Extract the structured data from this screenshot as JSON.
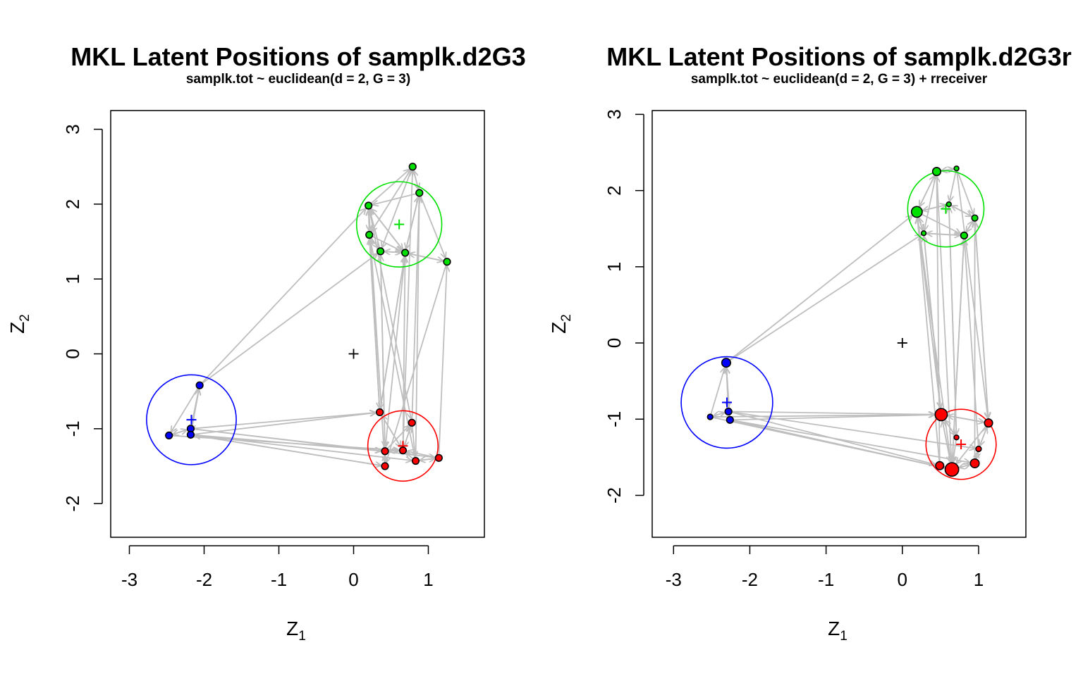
{
  "chart_data": [
    {
      "type": "scatter",
      "title": "MKL Latent Positions of samplk.d2G3",
      "subtitle": "samplk.tot ~ euclidean(d = 2, G = 3)",
      "xlabel": "Z",
      "xlabel_sub": "1",
      "ylabel": "Z",
      "ylabel_sub": "2",
      "xlim": [
        -3.25,
        1.75
      ],
      "ylim": [
        -2.45,
        3.25
      ],
      "xticks": [
        -3,
        -2,
        -1,
        0,
        1
      ],
      "yticks": [
        -2,
        -1,
        0,
        1,
        2,
        3
      ],
      "origin_marker": [
        0,
        0
      ],
      "edge_color": "#bebebe",
      "groups": [
        {
          "color": "#0000ff",
          "center": [
            -2.17,
            -0.88
          ],
          "radius": 0.6
        },
        {
          "color": "#ff0000",
          "center": [
            0.66,
            -1.23
          ],
          "radius": 0.47
        },
        {
          "color": "#00e000",
          "center": [
            0.61,
            1.73
          ],
          "radius": 0.57
        }
      ],
      "nodes": [
        {
          "x": -2.47,
          "y": -1.09,
          "group": 0,
          "size": 1
        },
        {
          "x": -2.18,
          "y": -1.0,
          "group": 0,
          "size": 1
        },
        {
          "x": -2.18,
          "y": -1.08,
          "group": 0,
          "size": 1
        },
        {
          "x": -2.06,
          "y": -0.42,
          "group": 0,
          "size": 1
        },
        {
          "x": 0.35,
          "y": -0.78,
          "group": 1,
          "size": 1
        },
        {
          "x": 0.78,
          "y": -0.92,
          "group": 1,
          "size": 1
        },
        {
          "x": 0.42,
          "y": -1.3,
          "group": 1,
          "size": 1
        },
        {
          "x": 0.66,
          "y": -1.29,
          "group": 1,
          "size": 1
        },
        {
          "x": 0.42,
          "y": -1.5,
          "group": 1,
          "size": 1
        },
        {
          "x": 0.83,
          "y": -1.43,
          "group": 1,
          "size": 1
        },
        {
          "x": 1.14,
          "y": -1.39,
          "group": 1,
          "size": 1
        },
        {
          "x": 0.79,
          "y": 2.5,
          "group": 2,
          "size": 1
        },
        {
          "x": 0.88,
          "y": 2.15,
          "group": 2,
          "size": 1
        },
        {
          "x": 0.2,
          "y": 1.98,
          "group": 2,
          "size": 1
        },
        {
          "x": 0.21,
          "y": 1.59,
          "group": 2,
          "size": 1
        },
        {
          "x": 0.36,
          "y": 1.37,
          "group": 2,
          "size": 1
        },
        {
          "x": 0.69,
          "y": 1.35,
          "group": 2,
          "size": 1
        },
        {
          "x": 1.25,
          "y": 1.23,
          "group": 2,
          "size": 1
        }
      ],
      "edges": [
        [
          3,
          0
        ],
        [
          0,
          1
        ],
        [
          1,
          3
        ],
        [
          2,
          3
        ],
        [
          3,
          2
        ],
        [
          1,
          0
        ],
        [
          3,
          13
        ],
        [
          3,
          15
        ],
        [
          1,
          4
        ],
        [
          2,
          4
        ],
        [
          2,
          6
        ],
        [
          1,
          6
        ],
        [
          2,
          8
        ],
        [
          0,
          7
        ],
        [
          2,
          9
        ],
        [
          1,
          10
        ],
        [
          8,
          2
        ],
        [
          5,
          7
        ],
        [
          7,
          5
        ],
        [
          6,
          7
        ],
        [
          7,
          6
        ],
        [
          9,
          7
        ],
        [
          6,
          8
        ],
        [
          8,
          6
        ],
        [
          9,
          10
        ],
        [
          10,
          9
        ],
        [
          4,
          7
        ],
        [
          7,
          4
        ],
        [
          5,
          9
        ],
        [
          6,
          5
        ],
        [
          10,
          7
        ],
        [
          4,
          16
        ],
        [
          4,
          13
        ],
        [
          4,
          14
        ],
        [
          6,
          15
        ],
        [
          8,
          13
        ],
        [
          7,
          16
        ],
        [
          9,
          12
        ],
        [
          9,
          14
        ],
        [
          10,
          17
        ],
        [
          5,
          12
        ],
        [
          7,
          11
        ],
        [
          16,
          4
        ],
        [
          16,
          6
        ],
        [
          14,
          4
        ],
        [
          13,
          5
        ],
        [
          17,
          8
        ],
        [
          15,
          6
        ],
        [
          11,
          12
        ],
        [
          12,
          11
        ],
        [
          13,
          14
        ],
        [
          14,
          13
        ],
        [
          13,
          16
        ],
        [
          16,
          13
        ],
        [
          15,
          16
        ],
        [
          16,
          15
        ],
        [
          11,
          15
        ],
        [
          11,
          14
        ],
        [
          12,
          16
        ],
        [
          16,
          12
        ],
        [
          14,
          16
        ],
        [
          17,
          16
        ],
        [
          16,
          17
        ],
        [
          13,
          11
        ],
        [
          12,
          13
        ],
        [
          14,
          15
        ],
        [
          15,
          13
        ],
        [
          12,
          17
        ]
      ]
    },
    {
      "type": "scatter",
      "title": "MKL Latent Positions of samplk.d2G3r",
      "subtitle": "samplk.tot ~ euclidean(d = 2, G = 3) + rreceiver",
      "xlabel": "Z",
      "xlabel_sub": "1",
      "ylabel": "Z",
      "ylabel_sub": "2",
      "xlim": [
        -3.28,
        1.62
      ],
      "ylim": [
        -2.55,
        3.05
      ],
      "xticks": [
        -3,
        -2,
        -1,
        0,
        1
      ],
      "yticks": [
        -2,
        -1,
        0,
        1,
        2,
        3
      ],
      "origin_marker": [
        0,
        0
      ],
      "edge_color": "#bebebe",
      "groups": [
        {
          "color": "#0000ff",
          "center": [
            -2.3,
            -0.78
          ],
          "radius": 0.6
        },
        {
          "color": "#ff0000",
          "center": [
            0.77,
            -1.33
          ],
          "radius": 0.46
        },
        {
          "color": "#00e000",
          "center": [
            0.57,
            1.76
          ],
          "radius": 0.5
        }
      ],
      "nodes": [
        {
          "x": -2.52,
          "y": -0.97,
          "group": 0,
          "size": 0.8
        },
        {
          "x": -2.28,
          "y": -0.9,
          "group": 0,
          "size": 1
        },
        {
          "x": -2.26,
          "y": -1.01,
          "group": 0,
          "size": 1
        },
        {
          "x": -2.31,
          "y": -0.26,
          "group": 0,
          "size": 1.3
        },
        {
          "x": 0.51,
          "y": -0.94,
          "group": 1,
          "size": 1.8
        },
        {
          "x": 1.13,
          "y": -1.05,
          "group": 1,
          "size": 1.2
        },
        {
          "x": 0.71,
          "y": -1.24,
          "group": 1,
          "size": 0.7
        },
        {
          "x": 1.0,
          "y": -1.39,
          "group": 1,
          "size": 0.8
        },
        {
          "x": 0.49,
          "y": -1.61,
          "group": 1,
          "size": 1.2
        },
        {
          "x": 0.65,
          "y": -1.66,
          "group": 1,
          "size": 2.0
        },
        {
          "x": 0.95,
          "y": -1.58,
          "group": 1,
          "size": 1.3
        },
        {
          "x": 0.45,
          "y": 2.25,
          "group": 2,
          "size": 1.2
        },
        {
          "x": 0.71,
          "y": 2.29,
          "group": 2,
          "size": 0.7
        },
        {
          "x": 0.19,
          "y": 1.72,
          "group": 2,
          "size": 1.6
        },
        {
          "x": 0.61,
          "y": 1.82,
          "group": 2,
          "size": 0.7
        },
        {
          "x": 0.95,
          "y": 1.64,
          "group": 2,
          "size": 0.9
        },
        {
          "x": 0.28,
          "y": 1.44,
          "group": 2,
          "size": 0.7
        },
        {
          "x": 0.81,
          "y": 1.41,
          "group": 2,
          "size": 1.0
        }
      ],
      "edges": [
        [
          1,
          3
        ],
        [
          2,
          3
        ],
        [
          0,
          3
        ],
        [
          3,
          1
        ],
        [
          1,
          0
        ],
        [
          0,
          1
        ],
        [
          2,
          1
        ],
        [
          3,
          13
        ],
        [
          3,
          16
        ],
        [
          1,
          4
        ],
        [
          2,
          4
        ],
        [
          0,
          4
        ],
        [
          1,
          8
        ],
        [
          2,
          9
        ],
        [
          0,
          9
        ],
        [
          2,
          10
        ],
        [
          1,
          7
        ],
        [
          4,
          5
        ],
        [
          5,
          4
        ],
        [
          4,
          6
        ],
        [
          6,
          4
        ],
        [
          5,
          7
        ],
        [
          7,
          5
        ],
        [
          8,
          9
        ],
        [
          9,
          8
        ],
        [
          9,
          10
        ],
        [
          10,
          9
        ],
        [
          4,
          9
        ],
        [
          9,
          4
        ],
        [
          6,
          9
        ],
        [
          7,
          10
        ],
        [
          10,
          7
        ],
        [
          5,
          9
        ],
        [
          4,
          13
        ],
        [
          4,
          16
        ],
        [
          5,
          15
        ],
        [
          9,
          13
        ],
        [
          9,
          17
        ],
        [
          8,
          13
        ],
        [
          10,
          15
        ],
        [
          7,
          17
        ],
        [
          6,
          14
        ],
        [
          8,
          11
        ],
        [
          13,
          4
        ],
        [
          16,
          4
        ],
        [
          17,
          9
        ],
        [
          15,
          5
        ],
        [
          14,
          6
        ],
        [
          12,
          5
        ],
        [
          11,
          9
        ],
        [
          11,
          12
        ],
        [
          12,
          11
        ],
        [
          11,
          13
        ],
        [
          13,
          11
        ],
        [
          13,
          14
        ],
        [
          14,
          13
        ],
        [
          14,
          15
        ],
        [
          15,
          14
        ],
        [
          13,
          16
        ],
        [
          16,
          17
        ],
        [
          17,
          16
        ],
        [
          15,
          17
        ],
        [
          12,
          14
        ],
        [
          11,
          16
        ],
        [
          13,
          17
        ],
        [
          12,
          15
        ],
        [
          16,
          13
        ],
        [
          17,
          15
        ]
      ]
    }
  ]
}
